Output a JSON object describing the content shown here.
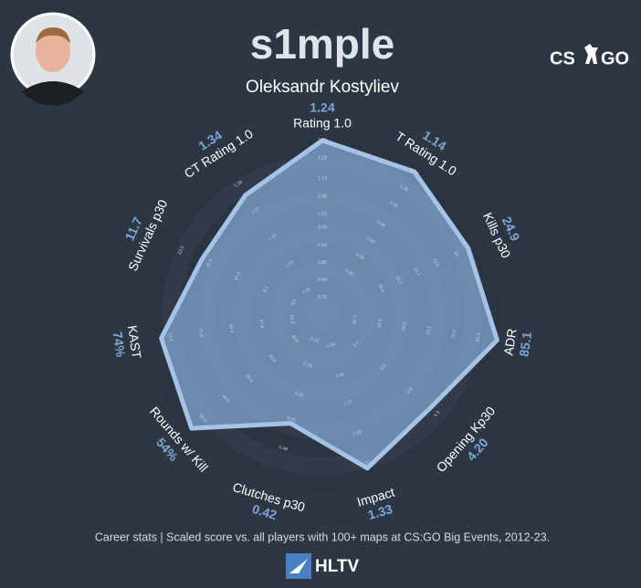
{
  "chart_data": {
    "type": "radar",
    "title": "s1mple",
    "subtitle": "Oleksandr Kostyliev",
    "categories": [
      "Rating 1.0",
      "T Rating 1.0",
      "Kills p30",
      "ADR",
      "Opening Kp30",
      "Impact",
      "Clutches p30",
      "Rounds w/ Kill",
      "KAST",
      "Survivals p30",
      "CT Rating 1.0"
    ],
    "values": [
      1.24,
      1.14,
      24.9,
      85.1,
      4.2,
      1.33,
      0.42,
      54,
      74,
      11.7,
      1.34
    ],
    "value_labels": [
      "1.24",
      "1.14",
      "24.9",
      "85.1",
      "4.20",
      "1.33",
      "0.42",
      "54%",
      "74%",
      "11.7",
      "1.34"
    ],
    "axis_limits": [
      [
        0.74,
        1.25
      ],
      [
        0.7,
        1.16
      ],
      [
        14,
        26.1
      ],
      [
        62,
        85.3
      ],
      [
        2.6,
        4.6
      ],
      [
        0.72,
        1.4
      ],
      [
        0.16,
        0.57
      ],
      [
        36.8,
        54.5
      ],
      [
        63.4,
        75
      ],
      [
        7,
        13.3
      ],
      [
        0.8,
        1.475
      ]
    ],
    "axis_ticks": [
      [
        0.79,
        0.84,
        0.89,
        0.94,
        0.99,
        1.03,
        1.08,
        1.13,
        1.19,
        1.24
      ],
      [
        0.83,
        0.88,
        0.93,
        0.98,
        1.04,
        1.09,
        1.14
      ],
      [
        18.4,
        19.7,
        21.1,
        22.5,
        24
      ],
      [
        66.3,
        69.6,
        72.8,
        76.1,
        79.4,
        82.6
      ],
      [
        3.1,
        3.5,
        3.9,
        4.3
      ],
      [
        0.84,
        0.96,
        1.07,
        1.19,
        1.31
      ],
      [
        0.22,
        0.28,
        0.35,
        0.41,
        0.48
      ],
      [
        40.4,
        43.4,
        46.4,
        49.5,
        52.5
      ],
      [
        65.4,
        67.4,
        69.4,
        71.4,
        73.4
      ],
      [
        8.1,
        9.2,
        10.3,
        11.4,
        12.5
      ],
      [
        0.91,
        1.03,
        1.15,
        1.27,
        1.39
      ]
    ],
    "color": "#a5c3e6",
    "caption": "Career stats | Scaled score vs. all players with 100+ maps at CS:GO Big Events, 2012-23.",
    "game_logo": [
      "CS",
      "GO"
    ],
    "brand": "HLTV"
  }
}
